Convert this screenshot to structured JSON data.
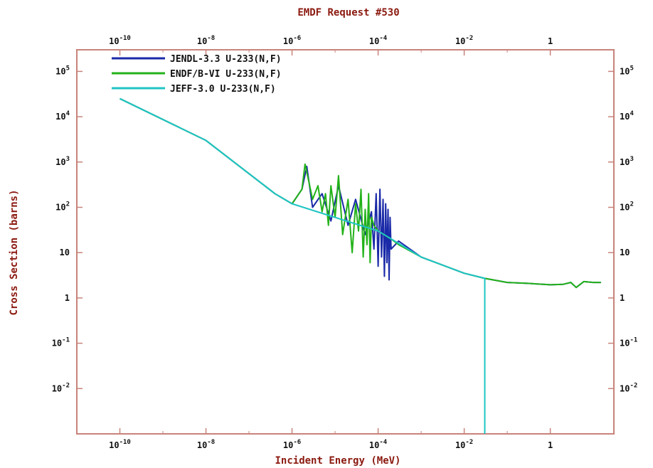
{
  "chart_data": {
    "type": "line",
    "title": "EMDF Request #530",
    "xlabel": "Incident Energy (MeV)",
    "ylabel": "Cross Section (barns)",
    "x_scale": "log",
    "y_scale": "log",
    "xlim": [
      1e-11,
      30
    ],
    "ylim": [
      0.001,
      300000
    ],
    "x_ticks": [
      {
        "value": 1e-10,
        "base": "10",
        "exp": "-10"
      },
      {
        "value": 1e-08,
        "base": "10",
        "exp": "-8"
      },
      {
        "value": 1e-06,
        "base": "10",
        "exp": "-6"
      },
      {
        "value": 0.0001,
        "base": "10",
        "exp": "-4"
      },
      {
        "value": 0.01,
        "base": "10",
        "exp": "-2"
      },
      {
        "value": 1,
        "base": "1",
        "exp": ""
      }
    ],
    "y_ticks": [
      {
        "value": 100000,
        "base": "10",
        "exp": "5"
      },
      {
        "value": 10000,
        "base": "10",
        "exp": "4"
      },
      {
        "value": 1000,
        "base": "10",
        "exp": "3"
      },
      {
        "value": 100,
        "base": "10",
        "exp": "2"
      },
      {
        "value": 10,
        "base": "10",
        "exp": ""
      },
      {
        "value": 1,
        "base": "1",
        "exp": ""
      },
      {
        "value": 0.1,
        "base": "10",
        "exp": "-1"
      },
      {
        "value": 0.01,
        "base": "10",
        "exp": "-2"
      }
    ],
    "grid": false,
    "legend_position": "top-left",
    "series": [
      {
        "name": "JENDL-3.3 U-233(N,F)",
        "color": "#1a2aa8",
        "x": [
          1e-10,
          1e-08,
          4e-07,
          1e-06,
          1.7e-06,
          2.2e-06,
          3e-06,
          5e-06,
          8e-06,
          1.2e-05,
          2e-05,
          3e-05,
          5e-05,
          7e-05,
          8e-05,
          9e-05,
          0.0001,
          0.00011,
          0.00012,
          0.00013,
          0.00014,
          0.00015,
          0.00016,
          0.00017,
          0.00018,
          0.00019,
          0.0002,
          0.0003,
          0.001,
          0.01,
          0.03,
          0.1,
          0.3,
          1,
          2,
          3,
          4,
          6,
          10,
          15
        ],
        "y": [
          25000,
          3000,
          200,
          120,
          250,
          800,
          100,
          200,
          50,
          300,
          40,
          150,
          25,
          80,
          12,
          200,
          5,
          250,
          8,
          150,
          3,
          120,
          6,
          90,
          2.5,
          60,
          12,
          18,
          8,
          3.5,
          2.7,
          2.2,
          2.1,
          1.95,
          2,
          2.2,
          1.7,
          2.3,
          2.2,
          2.2
        ]
      },
      {
        "name": "ENDF/B-VI U-233(N,F)",
        "color": "#23b21a",
        "x": [
          1e-10,
          1e-08,
          4e-07,
          1e-06,
          1.7e-06,
          2e-06,
          2.3e-06,
          3e-06,
          4e-06,
          5e-06,
          6e-06,
          7e-06,
          8e-06,
          1e-05,
          1.2e-05,
          1.5e-05,
          2e-05,
          2.5e-05,
          3e-05,
          3.5e-05,
          4e-05,
          4.5e-05,
          5e-05,
          5.5e-05,
          6e-05,
          6.5e-05,
          7e-05,
          8e-05,
          0.0001,
          0.0002,
          0.0003,
          0.001,
          0.01,
          0.03,
          0.1,
          0.3,
          1,
          2,
          3,
          4,
          6,
          10,
          15
        ],
        "y": [
          25000,
          3000,
          200,
          120,
          250,
          900,
          500,
          150,
          300,
          80,
          200,
          40,
          300,
          60,
          500,
          25,
          150,
          10,
          120,
          30,
          250,
          8,
          90,
          15,
          200,
          6,
          60,
          40,
          30,
          20,
          15,
          8,
          3.5,
          2.7,
          2.2,
          2.1,
          1.95,
          2,
          2.2,
          1.7,
          2.3,
          2.2,
          2.2
        ]
      },
      {
        "name": "JEFF-3.0 U-233(N,F)",
        "color": "#1fc4c4",
        "x": [
          1e-10,
          1e-08,
          4e-07,
          1e-06,
          0.0001,
          0.001,
          0.01,
          0.03,
          0.0300001,
          0.0300002
        ],
        "y": [
          25000,
          3000,
          200,
          120,
          30,
          8,
          3.5,
          2.7,
          0.001,
          0.001
        ]
      }
    ]
  }
}
